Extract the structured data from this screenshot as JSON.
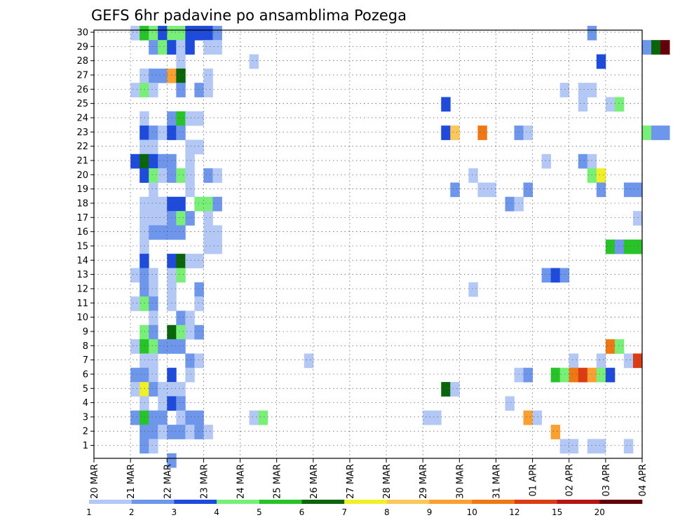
{
  "chart_data": {
    "type": "heatmap",
    "title": "GEFS 6hr padavine po ansamblima Pozega",
    "y_ticks": [
      "1",
      "2",
      "3",
      "4",
      "5",
      "6",
      "7",
      "8",
      "9",
      "10",
      "11",
      "12",
      "13",
      "14",
      "15",
      "16",
      "17",
      "18",
      "19",
      "20",
      "21",
      "22",
      "23",
      "24",
      "25",
      "26",
      "27",
      "28",
      "29",
      "30"
    ],
    "x_ticks": [
      "20 MAR",
      "21 MAR",
      "22 MAR",
      "23 MAR",
      "24 MAR",
      "25 MAR",
      "26 MAR",
      "27 MAR",
      "28 MAR",
      "29 MAR",
      "30 MAR",
      "31 MAR",
      "01 APR",
      "02 APR",
      "03 APR",
      "04 APR"
    ],
    "grid": true,
    "colorbar": {
      "thresholds": [
        "1",
        "2",
        "3",
        "4",
        "5",
        "6",
        "7",
        "8",
        "9",
        "10",
        "12",
        "15",
        "20"
      ],
      "colors": [
        "#b4c8f5",
        "#6e96eb",
        "#1e4bdc",
        "#78f078",
        "#28c328",
        "#0a640a",
        "#f0f028",
        "#fac85a",
        "#faa032",
        "#f07814",
        "#dc3c14",
        "#b41414",
        "#64000a"
      ]
    },
    "cells": [
      {
        "member": 30,
        "step": 4,
        "level": 1
      },
      {
        "member": 30,
        "step": 5,
        "level": 5
      },
      {
        "member": 30,
        "step": 6,
        "level": 4
      },
      {
        "member": 30,
        "step": 7,
        "level": 3
      },
      {
        "member": 30,
        "step": 8,
        "level": 4
      },
      {
        "member": 30,
        "step": 9,
        "level": 4
      },
      {
        "member": 30,
        "step": 10,
        "level": 3
      },
      {
        "member": 30,
        "step": 11,
        "level": 3
      },
      {
        "member": 30,
        "step": 12,
        "level": 3
      },
      {
        "member": 30,
        "step": 13,
        "level": 2
      },
      {
        "member": 30,
        "step": 54,
        "level": 2
      },
      {
        "member": 29,
        "step": 6,
        "level": 2
      },
      {
        "member": 29,
        "step": 7,
        "level": 4
      },
      {
        "member": 29,
        "step": 8,
        "level": 3
      },
      {
        "member": 29,
        "step": 9,
        "level": 1
      },
      {
        "member": 29,
        "step": 10,
        "level": 3
      },
      {
        "member": 29,
        "step": 12,
        "level": 1
      },
      {
        "member": 29,
        "step": 13,
        "level": 1
      },
      {
        "member": 29,
        "step": 60,
        "level": 2
      },
      {
        "member": 29,
        "step": 61,
        "level": 6
      },
      {
        "member": 29,
        "step": 62,
        "level": 13
      },
      {
        "member": 28,
        "step": 9,
        "level": 1
      },
      {
        "member": 28,
        "step": 17,
        "level": 1
      },
      {
        "member": 28,
        "step": 55,
        "level": 3
      },
      {
        "member": 27,
        "step": 5,
        "level": 1
      },
      {
        "member": 27,
        "step": 6,
        "level": 2
      },
      {
        "member": 27,
        "step": 7,
        "level": 2
      },
      {
        "member": 27,
        "step": 8,
        "level": 9
      },
      {
        "member": 27,
        "step": 9,
        "level": 6
      },
      {
        "member": 27,
        "step": 12,
        "level": 1
      },
      {
        "member": 26,
        "step": 4,
        "level": 1
      },
      {
        "member": 26,
        "step": 5,
        "level": 4
      },
      {
        "member": 26,
        "step": 6,
        "level": 1
      },
      {
        "member": 26,
        "step": 9,
        "level": 2
      },
      {
        "member": 26,
        "step": 11,
        "level": 2
      },
      {
        "member": 26,
        "step": 12,
        "level": 1
      },
      {
        "member": 26,
        "step": 51,
        "level": 1
      },
      {
        "member": 26,
        "step": 53,
        "level": 1
      },
      {
        "member": 26,
        "step": 54,
        "level": 1
      },
      {
        "member": 25,
        "step": 38,
        "level": 3
      },
      {
        "member": 25,
        "step": 53,
        "level": 1
      },
      {
        "member": 25,
        "step": 56,
        "level": 1
      },
      {
        "member": 25,
        "step": 57,
        "level": 4
      },
      {
        "member": 24,
        "step": 5,
        "level": 1
      },
      {
        "member": 24,
        "step": 8,
        "level": 2
      },
      {
        "member": 24,
        "step": 9,
        "level": 5
      },
      {
        "member": 24,
        "step": 10,
        "level": 1
      },
      {
        "member": 24,
        "step": 11,
        "level": 1
      },
      {
        "member": 23,
        "step": 5,
        "level": 3
      },
      {
        "member": 23,
        "step": 6,
        "level": 2
      },
      {
        "member": 23,
        "step": 7,
        "level": 1
      },
      {
        "member": 23,
        "step": 8,
        "level": 3
      },
      {
        "member": 23,
        "step": 9,
        "level": 2
      },
      {
        "member": 23,
        "step": 38,
        "level": 3
      },
      {
        "member": 23,
        "step": 39,
        "level": 8
      },
      {
        "member": 23,
        "step": 42,
        "level": 10
      },
      {
        "member": 23,
        "step": 46,
        "level": 2
      },
      {
        "member": 23,
        "step": 47,
        "level": 1
      },
      {
        "member": 23,
        "step": 60,
        "level": 4
      },
      {
        "member": 23,
        "step": 61,
        "level": 2
      },
      {
        "member": 23,
        "step": 62,
        "level": 2
      },
      {
        "member": 22,
        "step": 5,
        "level": 1
      },
      {
        "member": 22,
        "step": 6,
        "level": 1
      },
      {
        "member": 22,
        "step": 10,
        "level": 1
      },
      {
        "member": 22,
        "step": 11,
        "level": 1
      },
      {
        "member": 21,
        "step": 4,
        "level": 3
      },
      {
        "member": 21,
        "step": 5,
        "level": 6
      },
      {
        "member": 21,
        "step": 6,
        "level": 3
      },
      {
        "member": 21,
        "step": 7,
        "level": 2
      },
      {
        "member": 21,
        "step": 8,
        "level": 2
      },
      {
        "member": 21,
        "step": 10,
        "level": 1
      },
      {
        "member": 21,
        "step": 49,
        "level": 1
      },
      {
        "member": 21,
        "step": 53,
        "level": 2
      },
      {
        "member": 21,
        "step": 54,
        "level": 1
      },
      {
        "member": 20,
        "step": 5,
        "level": 3
      },
      {
        "member": 20,
        "step": 6,
        "level": 4
      },
      {
        "member": 20,
        "step": 7,
        "level": 1
      },
      {
        "member": 20,
        "step": 8,
        "level": 2
      },
      {
        "member": 20,
        "step": 9,
        "level": 4
      },
      {
        "member": 20,
        "step": 10,
        "level": 1
      },
      {
        "member": 20,
        "step": 12,
        "level": 2
      },
      {
        "member": 20,
        "step": 13,
        "level": 1
      },
      {
        "member": 20,
        "step": 41,
        "level": 1
      },
      {
        "member": 20,
        "step": 54,
        "level": 4
      },
      {
        "member": 20,
        "step": 55,
        "level": 7
      },
      {
        "member": 19,
        "step": 6,
        "level": 1
      },
      {
        "member": 19,
        "step": 10,
        "level": 1
      },
      {
        "member": 19,
        "step": 39,
        "level": 2
      },
      {
        "member": 19,
        "step": 42,
        "level": 1
      },
      {
        "member": 19,
        "step": 43,
        "level": 1
      },
      {
        "member": 19,
        "step": 47,
        "level": 2
      },
      {
        "member": 19,
        "step": 55,
        "level": 2
      },
      {
        "member": 19,
        "step": 58,
        "level": 2
      },
      {
        "member": 19,
        "step": 59,
        "level": 2
      },
      {
        "member": 18,
        "step": 5,
        "level": 1
      },
      {
        "member": 18,
        "step": 6,
        "level": 1
      },
      {
        "member": 18,
        "step": 7,
        "level": 1
      },
      {
        "member": 18,
        "step": 8,
        "level": 3
      },
      {
        "member": 18,
        "step": 9,
        "level": 3
      },
      {
        "member": 18,
        "step": 11,
        "level": 4
      },
      {
        "member": 18,
        "step": 12,
        "level": 4
      },
      {
        "member": 18,
        "step": 13,
        "level": 2
      },
      {
        "member": 18,
        "step": 45,
        "level": 2
      },
      {
        "member": 18,
        "step": 46,
        "level": 1
      },
      {
        "member": 17,
        "step": 5,
        "level": 1
      },
      {
        "member": 17,
        "step": 6,
        "level": 1
      },
      {
        "member": 17,
        "step": 7,
        "level": 1
      },
      {
        "member": 17,
        "step": 8,
        "level": 2
      },
      {
        "member": 17,
        "step": 9,
        "level": 4
      },
      {
        "member": 17,
        "step": 10,
        "level": 2
      },
      {
        "member": 17,
        "step": 12,
        "level": 1
      },
      {
        "member": 17,
        "step": 59,
        "level": 1
      },
      {
        "member": 16,
        "step": 5,
        "level": 1
      },
      {
        "member": 16,
        "step": 6,
        "level": 2
      },
      {
        "member": 16,
        "step": 7,
        "level": 2
      },
      {
        "member": 16,
        "step": 8,
        "level": 2
      },
      {
        "member": 16,
        "step": 9,
        "level": 2
      },
      {
        "member": 16,
        "step": 12,
        "level": 1
      },
      {
        "member": 16,
        "step": 13,
        "level": 1
      },
      {
        "member": 15,
        "step": 5,
        "level": 1
      },
      {
        "member": 15,
        "step": 12,
        "level": 1
      },
      {
        "member": 15,
        "step": 13,
        "level": 1
      },
      {
        "member": 15,
        "step": 56,
        "level": 5
      },
      {
        "member": 15,
        "step": 57,
        "level": 2
      },
      {
        "member": 15,
        "step": 58,
        "level": 5
      },
      {
        "member": 15,
        "step": 59,
        "level": 5
      },
      {
        "member": 14,
        "step": 5,
        "level": 3
      },
      {
        "member": 14,
        "step": 8,
        "level": 3
      },
      {
        "member": 14,
        "step": 9,
        "level": 6
      },
      {
        "member": 14,
        "step": 10,
        "level": 1
      },
      {
        "member": 14,
        "step": 11,
        "level": 1
      },
      {
        "member": 13,
        "step": 4,
        "level": 1
      },
      {
        "member": 13,
        "step": 5,
        "level": 2
      },
      {
        "member": 13,
        "step": 6,
        "level": 1
      },
      {
        "member": 13,
        "step": 8,
        "level": 1
      },
      {
        "member": 13,
        "step": 9,
        "level": 4
      },
      {
        "member": 13,
        "step": 49,
        "level": 2
      },
      {
        "member": 13,
        "step": 50,
        "level": 3
      },
      {
        "member": 13,
        "step": 51,
        "level": 2
      },
      {
        "member": 12,
        "step": 5,
        "level": 2
      },
      {
        "member": 12,
        "step": 6,
        "level": 1
      },
      {
        "member": 12,
        "step": 8,
        "level": 1
      },
      {
        "member": 12,
        "step": 11,
        "level": 2
      },
      {
        "member": 12,
        "step": 41,
        "level": 1
      },
      {
        "member": 11,
        "step": 4,
        "level": 1
      },
      {
        "member": 11,
        "step": 5,
        "level": 4
      },
      {
        "member": 11,
        "step": 6,
        "level": 2
      },
      {
        "member": 11,
        "step": 8,
        "level": 1
      },
      {
        "member": 11,
        "step": 11,
        "level": 1
      },
      {
        "member": 10,
        "step": 6,
        "level": 1
      },
      {
        "member": 10,
        "step": 9,
        "level": 2
      },
      {
        "member": 10,
        "step": 10,
        "level": 1
      },
      {
        "member": 9,
        "step": 5,
        "level": 4
      },
      {
        "member": 9,
        "step": 6,
        "level": 2
      },
      {
        "member": 9,
        "step": 8,
        "level": 6
      },
      {
        "member": 9,
        "step": 9,
        "level": 4
      },
      {
        "member": 9,
        "step": 10,
        "level": 1
      },
      {
        "member": 9,
        "step": 11,
        "level": 2
      },
      {
        "member": 8,
        "step": 4,
        "level": 1
      },
      {
        "member": 8,
        "step": 5,
        "level": 5
      },
      {
        "member": 8,
        "step": 6,
        "level": 4
      },
      {
        "member": 8,
        "step": 7,
        "level": 2
      },
      {
        "member": 8,
        "step": 8,
        "level": 2
      },
      {
        "member": 8,
        "step": 9,
        "level": 2
      },
      {
        "member": 8,
        "step": 56,
        "level": 10
      },
      {
        "member": 8,
        "step": 57,
        "level": 4
      },
      {
        "member": 7,
        "step": 5,
        "level": 1
      },
      {
        "member": 7,
        "step": 6,
        "level": 1
      },
      {
        "member": 7,
        "step": 10,
        "level": 2
      },
      {
        "member": 7,
        "step": 11,
        "level": 1
      },
      {
        "member": 7,
        "step": 23,
        "level": 1
      },
      {
        "member": 7,
        "step": 52,
        "level": 1
      },
      {
        "member": 7,
        "step": 55,
        "level": 1
      },
      {
        "member": 7,
        "step": 58,
        "level": 1
      },
      {
        "member": 7,
        "step": 59,
        "level": 11
      },
      {
        "member": 6,
        "step": 4,
        "level": 2
      },
      {
        "member": 6,
        "step": 5,
        "level": 2
      },
      {
        "member": 6,
        "step": 6,
        "level": 1
      },
      {
        "member": 6,
        "step": 8,
        "level": 3
      },
      {
        "member": 6,
        "step": 10,
        "level": 1
      },
      {
        "member": 6,
        "step": 46,
        "level": 1
      },
      {
        "member": 6,
        "step": 47,
        "level": 2
      },
      {
        "member": 6,
        "step": 50,
        "level": 5
      },
      {
        "member": 6,
        "step": 51,
        "level": 4
      },
      {
        "member": 6,
        "step": 52,
        "level": 10
      },
      {
        "member": 6,
        "step": 53,
        "level": 11
      },
      {
        "member": 6,
        "step": 54,
        "level": 9
      },
      {
        "member": 6,
        "step": 55,
        "level": 4
      },
      {
        "member": 6,
        "step": 56,
        "level": 3
      },
      {
        "member": 5,
        "step": 4,
        "level": 1
      },
      {
        "member": 5,
        "step": 5,
        "level": 7
      },
      {
        "member": 5,
        "step": 6,
        "level": 2
      },
      {
        "member": 5,
        "step": 7,
        "level": 1
      },
      {
        "member": 5,
        "step": 8,
        "level": 1
      },
      {
        "member": 5,
        "step": 9,
        "level": 1
      },
      {
        "member": 5,
        "step": 38,
        "level": 6
      },
      {
        "member": 5,
        "step": 39,
        "level": 1
      },
      {
        "member": 4,
        "step": 5,
        "level": 1
      },
      {
        "member": 4,
        "step": 7,
        "level": 1
      },
      {
        "member": 4,
        "step": 8,
        "level": 3
      },
      {
        "member": 4,
        "step": 9,
        "level": 2
      },
      {
        "member": 4,
        "step": 45,
        "level": 1
      },
      {
        "member": 3,
        "step": 4,
        "level": 2
      },
      {
        "member": 3,
        "step": 5,
        "level": 5
      },
      {
        "member": 3,
        "step": 6,
        "level": 2
      },
      {
        "member": 3,
        "step": 7,
        "level": 2
      },
      {
        "member": 3,
        "step": 9,
        "level": 1
      },
      {
        "member": 3,
        "step": 10,
        "level": 2
      },
      {
        "member": 3,
        "step": 11,
        "level": 2
      },
      {
        "member": 3,
        "step": 17,
        "level": 1
      },
      {
        "member": 3,
        "step": 18,
        "level": 4
      },
      {
        "member": 3,
        "step": 36,
        "level": 1
      },
      {
        "member": 3,
        "step": 37,
        "level": 1
      },
      {
        "member": 3,
        "step": 47,
        "level": 9
      },
      {
        "member": 3,
        "step": 48,
        "level": 1
      },
      {
        "member": 2,
        "step": 5,
        "level": 2
      },
      {
        "member": 2,
        "step": 6,
        "level": 2
      },
      {
        "member": 2,
        "step": 7,
        "level": 1
      },
      {
        "member": 2,
        "step": 8,
        "level": 2
      },
      {
        "member": 2,
        "step": 9,
        "level": 2
      },
      {
        "member": 2,
        "step": 10,
        "level": 1
      },
      {
        "member": 2,
        "step": 11,
        "level": 2
      },
      {
        "member": 2,
        "step": 12,
        "level": 1
      },
      {
        "member": 2,
        "step": 50,
        "level": 9
      },
      {
        "member": 1,
        "step": 5,
        "level": 2
      },
      {
        "member": 1,
        "step": 6,
        "level": 1
      },
      {
        "member": 1,
        "step": 51,
        "level": 1
      },
      {
        "member": 1,
        "step": 52,
        "level": 1
      },
      {
        "member": 1,
        "step": 54,
        "level": 1
      },
      {
        "member": 1,
        "step": 55,
        "level": 1
      },
      {
        "member": 1,
        "step": 58,
        "level": 1
      },
      {
        "member": 0,
        "step": 8,
        "level": 2
      }
    ]
  }
}
